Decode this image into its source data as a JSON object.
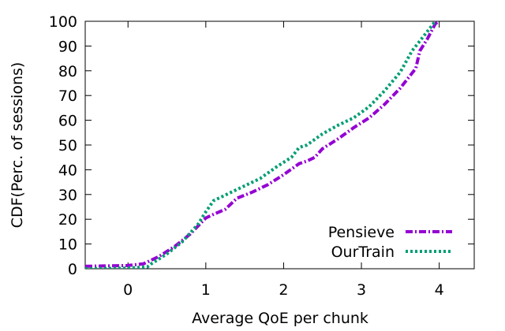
{
  "chart_data": {
    "type": "line",
    "title": "",
    "xlabel": "Average QoE per chunk",
    "ylabel": "CDF(Perc. of sessions)",
    "xlim": [
      -0.55,
      4.45
    ],
    "ylim": [
      0,
      100
    ],
    "xticks": [
      "0",
      "1",
      "2",
      "3",
      "4"
    ],
    "yticks": [
      "0",
      "10",
      "20",
      "30",
      "40",
      "50",
      "60",
      "70",
      "80",
      "90",
      "100"
    ],
    "grid": false,
    "legend_position": "bottom-right",
    "series": [
      {
        "name": "Pensieve",
        "color": "#9400d3",
        "style": "dash-dot",
        "points": [
          [
            -0.55,
            1
          ],
          [
            0,
            1.3
          ],
          [
            0.2,
            2
          ],
          [
            0.4,
            5
          ],
          [
            0.6,
            9
          ],
          [
            0.8,
            14
          ],
          [
            1.0,
            20.5
          ],
          [
            1.1,
            22
          ],
          [
            1.25,
            24
          ],
          [
            1.4,
            28.5
          ],
          [
            1.6,
            31
          ],
          [
            1.8,
            34
          ],
          [
            2.0,
            38
          ],
          [
            2.2,
            42.5
          ],
          [
            2.3,
            43.5
          ],
          [
            2.4,
            45
          ],
          [
            2.5,
            48.5
          ],
          [
            2.7,
            52.5
          ],
          [
            2.9,
            57
          ],
          [
            3.1,
            61
          ],
          [
            3.3,
            66.5
          ],
          [
            3.5,
            73
          ],
          [
            3.7,
            81
          ],
          [
            3.75,
            88
          ],
          [
            3.85,
            93
          ],
          [
            3.95,
            99
          ],
          [
            4.0,
            100
          ]
        ]
      },
      {
        "name": "OurTrain",
        "color": "#009e73",
        "style": "dotted",
        "points": [
          [
            -0.55,
            0
          ],
          [
            0,
            0.3
          ],
          [
            0.25,
            0.8
          ],
          [
            0.3,
            2
          ],
          [
            0.5,
            6
          ],
          [
            0.7,
            11
          ],
          [
            0.9,
            18
          ],
          [
            1.0,
            23
          ],
          [
            1.1,
            27.5
          ],
          [
            1.3,
            30.5
          ],
          [
            1.5,
            33.5
          ],
          [
            1.7,
            36.5
          ],
          [
            1.9,
            41
          ],
          [
            2.1,
            45
          ],
          [
            2.2,
            49
          ],
          [
            2.3,
            50
          ],
          [
            2.5,
            54.5
          ],
          [
            2.7,
            58
          ],
          [
            2.9,
            61
          ],
          [
            3.1,
            65.5
          ],
          [
            3.3,
            72
          ],
          [
            3.5,
            79.5
          ],
          [
            3.65,
            88
          ],
          [
            3.75,
            92
          ],
          [
            3.85,
            96
          ],
          [
            3.95,
            100
          ]
        ]
      }
    ]
  }
}
